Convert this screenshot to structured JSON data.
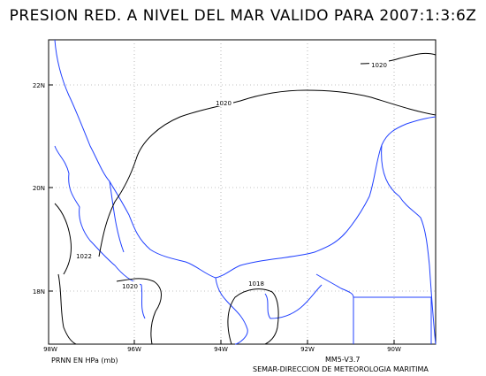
{
  "title": "PRESION RED. A NIVEL DEL MAR VALIDO PARA 2007:1:3:6Z",
  "axes": {
    "x_ticks": [
      "98W",
      "96W",
      "94W",
      "92W",
      "90W"
    ],
    "y_ticks": [
      "22N",
      "20N",
      "18N"
    ]
  },
  "contours": {
    "labels": [
      "1020",
      "1020",
      "1022",
      "1020",
      "1018"
    ]
  },
  "footer": {
    "left": "PRNN EN HPa (mb)",
    "version": "MM5-V3.7",
    "agency": "SEMAR-DIRECCION DE METEOROLOGIA MARITIMA"
  },
  "colors": {
    "coastline": "#2040ff",
    "isobar": "#000000",
    "grid": "#888888"
  }
}
